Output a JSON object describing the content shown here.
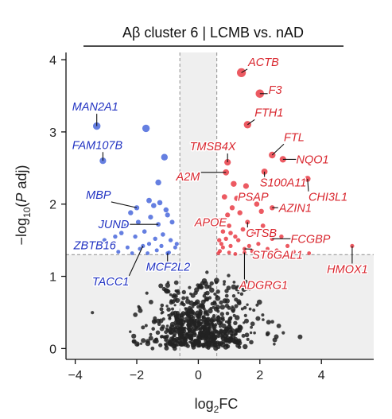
{
  "chart_data": {
    "type": "scatter",
    "title": "Aβ cluster 6 | LCMB vs. nAD",
    "xlabel": {
      "base": "log",
      "sub": "2",
      "rest": "FC"
    },
    "ylabel": {
      "a": "−log",
      "sub": "10",
      "b": "(",
      "italic": "P",
      "c": " adj)"
    },
    "xlim": [
      -4.3,
      5.7
    ],
    "ylim": [
      -0.15,
      4.1
    ],
    "xticks": [
      -4,
      -2,
      0,
      2,
      4
    ],
    "yticks": [
      0,
      1,
      2,
      3,
      4
    ],
    "fc_threshold": [
      -0.6,
      0.6
    ],
    "p_threshold": 1.3,
    "colors": {
      "up": "#e8363f",
      "down": "#3a5bd9",
      "ns": "#222222",
      "up_label": "#d9262e",
      "down_label": "#2233c2",
      "shade": "#efefef",
      "threshold": "#999999"
    },
    "labels_up": [
      {
        "gene": "ACTB",
        "x": 1.4,
        "y": 3.82,
        "tx": 1.62,
        "ty": 3.97
      },
      {
        "gene": "F3",
        "x": 2.0,
        "y": 3.53,
        "tx": 2.28,
        "ty": 3.58
      },
      {
        "gene": "FTH1",
        "x": 1.6,
        "y": 3.1,
        "tx": 1.83,
        "ty": 3.27
      },
      {
        "gene": "TMSB4X",
        "x": 0.95,
        "y": 2.58,
        "tx": -0.28,
        "ty": 2.8
      },
      {
        "gene": "FTL",
        "x": 2.4,
        "y": 2.68,
        "tx": 2.78,
        "ty": 2.93
      },
      {
        "gene": "NQO1",
        "x": 2.75,
        "y": 2.62,
        "tx": 3.18,
        "ty": 2.62
      },
      {
        "gene": "A2M",
        "x": 0.9,
        "y": 2.44,
        "tx": -0.72,
        "ty": 2.38
      },
      {
        "gene": "S100A11",
        "x": 2.15,
        "y": 2.45,
        "tx": 2.0,
        "ty": 2.3
      },
      {
        "gene": "CHI3L1",
        "x": 3.55,
        "y": 2.35,
        "tx": 3.58,
        "ty": 2.1
      },
      {
        "gene": "PSAP",
        "x": 1.25,
        "y": 2.08,
        "tx": 1.28,
        "ty": 2.1
      },
      {
        "gene": "AZIN1",
        "x": 2.4,
        "y": 1.95,
        "tx": 2.62,
        "ty": 1.95
      },
      {
        "gene": "APOE",
        "x": 1.0,
        "y": 1.7,
        "tx": -0.12,
        "ty": 1.75
      },
      {
        "gene": "CTSB",
        "x": 1.6,
        "y": 1.75,
        "tx": 1.55,
        "ty": 1.6
      },
      {
        "gene": "FCGBP",
        "x": 2.4,
        "y": 1.52,
        "tx": 3.0,
        "ty": 1.52
      },
      {
        "gene": "ST6GAL1",
        "x": 1.5,
        "y": 1.38,
        "tx": 1.75,
        "ty": 1.3
      },
      {
        "gene": "HMOX1",
        "x": 5.0,
        "y": 1.42,
        "tx": 4.18,
        "ty": 1.1
      },
      {
        "gene": "ADGRG1",
        "x": 1.5,
        "y": 1.33,
        "tx": 1.33,
        "ty": 0.88
      }
    ],
    "labels_down": [
      {
        "gene": "MAN2A1",
        "x": -3.3,
        "y": 3.08,
        "tx": -4.1,
        "ty": 3.35
      },
      {
        "gene": "FAM107B",
        "x": -3.1,
        "y": 2.6,
        "tx": -4.1,
        "ty": 2.82
      },
      {
        "gene": "MBP",
        "x": -2.0,
        "y": 1.95,
        "tx": -3.65,
        "ty": 2.13
      },
      {
        "gene": "JUND",
        "x": -1.3,
        "y": 1.72,
        "tx": -3.25,
        "ty": 1.72
      },
      {
        "gene": "ZBTB16",
        "x": -2.7,
        "y": 1.55,
        "tx": -4.05,
        "ty": 1.43
      },
      {
        "gene": "MCF2L2",
        "x": -1.0,
        "y": 1.32,
        "tx": -1.7,
        "ty": 1.13
      },
      {
        "gene": "TACC1",
        "x": -1.8,
        "y": 1.42,
        "tx": -3.45,
        "ty": 0.93
      }
    ],
    "points_up": [
      [
        1.4,
        3.82
      ],
      [
        2.0,
        3.53
      ],
      [
        1.6,
        3.1
      ],
      [
        0.95,
        2.58
      ],
      [
        2.4,
        2.68
      ],
      [
        2.75,
        2.62
      ],
      [
        0.9,
        2.44
      ],
      [
        2.15,
        2.45
      ],
      [
        3.55,
        2.35
      ],
      [
        1.25,
        2.08
      ],
      [
        2.4,
        1.95
      ],
      [
        1.0,
        1.7
      ],
      [
        1.6,
        1.75
      ],
      [
        2.4,
        1.52
      ],
      [
        1.5,
        1.38
      ],
      [
        5.0,
        1.42
      ],
      [
        1.5,
        1.33
      ],
      [
        0.85,
        2.1
      ],
      [
        1.1,
        1.95
      ],
      [
        0.95,
        1.85
      ],
      [
        1.35,
        1.88
      ],
      [
        0.8,
        1.62
      ],
      [
        1.2,
        1.55
      ],
      [
        1.8,
        1.6
      ],
      [
        2.1,
        1.7
      ],
      [
        2.7,
        1.55
      ],
      [
        0.75,
        1.45
      ],
      [
        1.05,
        1.42
      ],
      [
        1.3,
        1.5
      ],
      [
        1.95,
        1.45
      ],
      [
        2.25,
        1.38
      ],
      [
        0.7,
        1.35
      ],
      [
        1.0,
        1.33
      ],
      [
        1.75,
        1.35
      ],
      [
        2.55,
        1.36
      ],
      [
        3.1,
        1.34
      ],
      [
        0.65,
        1.32
      ],
      [
        1.2,
        1.31
      ],
      [
        0.9,
        1.52
      ],
      [
        1.55,
        2.25
      ],
      [
        1.15,
        2.28
      ],
      [
        0.72,
        1.78
      ],
      [
        2.05,
        1.9
      ],
      [
        1.45,
        1.65
      ],
      [
        2.9,
        1.42
      ],
      [
        0.8,
        1.4
      ],
      [
        1.65,
        1.42
      ],
      [
        2.3,
        1.33
      ],
      [
        3.6,
        1.32
      ],
      [
        0.68,
        1.5
      ],
      [
        1.9,
        2.0
      ],
      [
        1.05,
        1.6
      ]
    ],
    "points_down": [
      [
        -3.3,
        3.08
      ],
      [
        -3.1,
        2.6
      ],
      [
        -2.0,
        1.95
      ],
      [
        -1.3,
        1.72
      ],
      [
        -2.7,
        1.55
      ],
      [
        -1.0,
        1.32
      ],
      [
        -1.8,
        1.42
      ],
      [
        -1.7,
        3.05
      ],
      [
        -1.1,
        2.65
      ],
      [
        -1.3,
        2.3
      ],
      [
        -1.6,
        2.05
      ],
      [
        -1.45,
        1.98
      ],
      [
        -2.2,
        1.88
      ],
      [
        -1.95,
        1.75
      ],
      [
        -1.55,
        1.82
      ],
      [
        -1.0,
        1.85
      ],
      [
        -0.85,
        1.75
      ],
      [
        -2.4,
        1.7
      ],
      [
        -1.75,
        1.62
      ],
      [
        -1.15,
        1.58
      ],
      [
        -2.05,
        1.55
      ],
      [
        -1.4,
        1.52
      ],
      [
        -0.9,
        1.5
      ],
      [
        -3.05,
        1.5
      ],
      [
        -1.6,
        1.45
      ],
      [
        -1.2,
        1.42
      ],
      [
        -2.3,
        1.4
      ],
      [
        -0.75,
        1.4
      ],
      [
        -1.9,
        1.38
      ],
      [
        -1.35,
        1.36
      ],
      [
        -2.6,
        1.34
      ],
      [
        -0.95,
        1.33
      ],
      [
        -1.65,
        1.32
      ],
      [
        -2.15,
        1.32
      ],
      [
        -0.7,
        1.45
      ],
      [
        -1.05,
        1.92
      ],
      [
        -2.5,
        1.6
      ],
      [
        -1.25,
        2.02
      ]
    ],
    "ns_seed": 7,
    "ns_count": 620
  }
}
